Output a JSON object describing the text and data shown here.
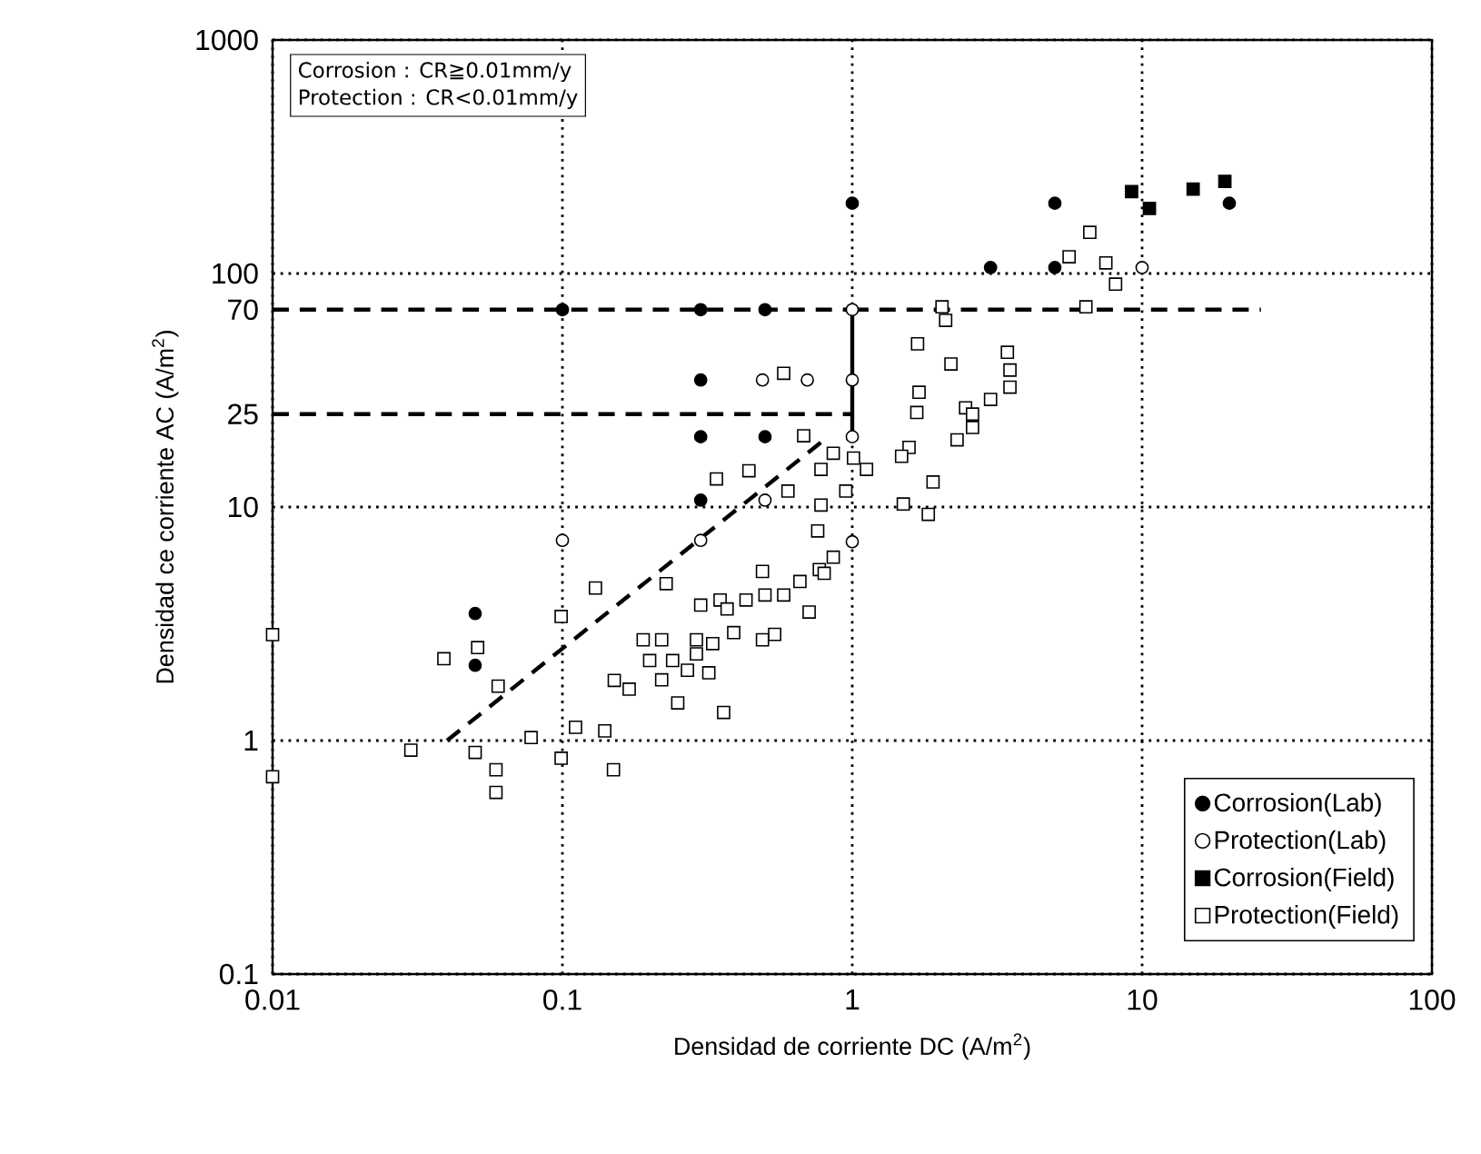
{
  "chart_data": {
    "type": "scatter",
    "xlabel": "Densidad de corriente DC  (A/m$^{2}$)",
    "ylabel": "Densidad ce corriente AC  (A/m$^{2}$)",
    "annotations": [
      "Corrosion : CR≧0.01mm/y",
      "Protection : CR<0.01mm/y"
    ],
    "log": "xy",
    "xlim": [
      0.01,
      100
    ],
    "ylim": [
      0.1,
      1000
    ],
    "xticks": [
      0.01,
      0.1,
      1,
      10,
      100
    ],
    "yticks": [
      0.1,
      1,
      10,
      25,
      70,
      100,
      1000
    ],
    "grid": true,
    "legend": "bottom right",
    "series": [
      {
        "name": "Corrosion(Lab)",
        "type": "scatter",
        "marker": "circle",
        "color": "#000000",
        "x": [
          0.1,
          0.3,
          0.5,
          0.3,
          0.3,
          0.5,
          0.3,
          0.05,
          0.05,
          1,
          5,
          3,
          5,
          20
        ],
        "values": [
          70,
          70,
          70,
          35,
          20,
          20,
          10.7,
          3.5,
          2.1,
          200,
          200,
          106,
          106,
          200
        ]
      },
      {
        "name": "Protection(Lab)",
        "type": "scatter",
        "marker": "circle",
        "color": "#ffffff",
        "x": [
          0.1,
          0.3,
          0.5,
          0.49,
          0.7,
          1,
          1,
          1,
          1,
          10
        ],
        "values": [
          7.2,
          7.2,
          10.7,
          35,
          35,
          70,
          35,
          20,
          7.1,
          106
        ]
      },
      {
        "name": "Corrosion(Field)",
        "type": "scatter",
        "marker": "square",
        "color": "#000000",
        "x": [
          9.2,
          10.6,
          15,
          19.3
        ],
        "values": [
          224,
          190,
          230,
          248
        ]
      },
      {
        "name": "Protection(Field)",
        "type": "scatter",
        "marker": "square",
        "color": "#ffffff",
        "x": [
          0.58,
          0.68,
          0.86,
          0.34,
          0.44,
          0.6,
          0.78,
          0.78,
          0.76,
          0.86,
          1.01,
          1.12,
          0.95,
          2.04,
          2.1,
          1.68,
          2.19,
          1.7,
          1.67,
          1.57,
          1.48,
          1.9,
          1.5,
          1.83,
          3.43,
          3.5,
          3.5,
          3.0,
          2.46,
          2.6,
          2.6,
          2.3,
          6.6,
          5.6,
          7.5,
          8.1,
          6.4,
          0.01,
          0.01,
          0.03,
          0.039,
          0.051,
          0.06,
          0.05,
          0.059,
          0.059,
          0.078,
          0.099,
          0.111,
          0.14,
          0.15,
          0.099,
          0.13,
          0.228,
          0.151,
          0.17,
          0.19,
          0.22,
          0.2,
          0.24,
          0.22,
          0.25,
          0.27,
          0.3,
          0.35,
          0.37,
          0.29,
          0.33,
          0.32,
          0.39,
          0.43,
          0.49,
          0.5,
          0.49,
          0.54,
          0.58,
          0.66,
          0.71,
          0.77,
          0.8,
          0.36,
          0.29
        ],
        "values": [
          37.4,
          20.2,
          17,
          13.2,
          14.3,
          11.7,
          14.5,
          10.2,
          7.9,
          6.1,
          16.2,
          14.5,
          11.7,
          72,
          63,
          50,
          41,
          31,
          25.4,
          18,
          16.5,
          12.8,
          10.3,
          9.3,
          46,
          38.6,
          32.6,
          28.9,
          26.6,
          25,
          21.9,
          19.4,
          150,
          118,
          111,
          90,
          72,
          2.84,
          0.7,
          0.91,
          2.24,
          2.5,
          1.71,
          0.89,
          0.75,
          0.6,
          1.03,
          0.84,
          1.14,
          1.1,
          0.75,
          3.4,
          4.5,
          4.7,
          1.81,
          1.66,
          2.7,
          2.7,
          2.2,
          2.2,
          1.82,
          1.45,
          2.0,
          3.8,
          4.0,
          3.66,
          2.7,
          2.6,
          1.95,
          2.9,
          4.0,
          5.3,
          4.2,
          2.7,
          2.85,
          4.2,
          4.8,
          3.55,
          5.4,
          5.2,
          1.32,
          2.35
        ]
      },
      {
        "type": "line",
        "line_style": "dashed",
        "color": "#000000",
        "x": [
          0.01,
          1
        ],
        "values": [
          70,
          70
        ]
      },
      {
        "type": "line",
        "line_style": "dashed",
        "color": "#000000",
        "x": [
          0.01,
          1
        ],
        "values": [
          25,
          25
        ]
      },
      {
        "type": "line",
        "line_style": "dashed",
        "color": "#000000",
        "x": [
          0.04,
          0.8
        ],
        "values": [
          1,
          19.4
        ]
      },
      {
        "type": "line",
        "line_style": "solid",
        "color": "#000000",
        "x": [
          1,
          1
        ],
        "values": [
          20,
          70
        ]
      },
      {
        "type": "line",
        "line_style": "dashed",
        "color": "#000000",
        "x": [
          1,
          25.7
        ],
        "values": [
          70,
          70
        ]
      }
    ]
  }
}
